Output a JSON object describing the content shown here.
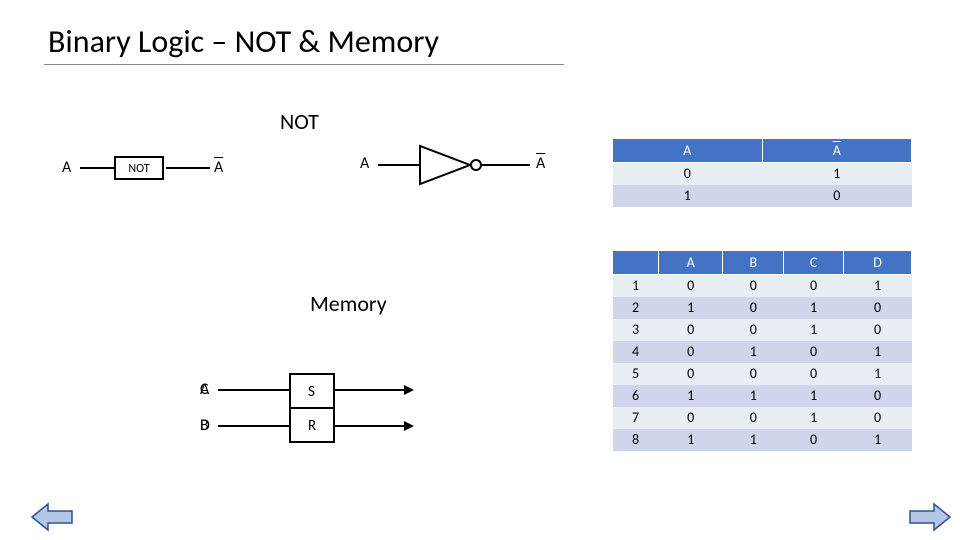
{
  "title": "Binary Logic – NOT & Memory",
  "sections": {
    "not_label": "NOT",
    "memory_label": "Memory"
  },
  "not_block": {
    "input_label": "A",
    "box_text": "NOT",
    "output_label": "A"
  },
  "not_gate": {
    "input_label": "A",
    "output_label": "A"
  },
  "sr_block": {
    "a": "A",
    "b": "B",
    "s": "S",
    "r": "R",
    "c": "C",
    "d": "D"
  },
  "not_table": {
    "type": "table",
    "header_bg": "#4472c4",
    "header_color": "#ffffff",
    "row_odd_bg": "#e9edf4",
    "row_even_bg": "#cfd5ea",
    "columns": [
      "A",
      "A"
    ],
    "column_overline": [
      false,
      true
    ],
    "rows": [
      [
        "0",
        "1"
      ],
      [
        "1",
        "0"
      ]
    ]
  },
  "mem_table": {
    "type": "table",
    "header_bg": "#4472c4",
    "header_color": "#ffffff",
    "row_odd_bg": "#e9edf4",
    "row_even_bg": "#cfd5ea",
    "columns": [
      "",
      "A",
      "B",
      "C",
      "D"
    ],
    "rows": [
      [
        "1",
        "0",
        "0",
        "0",
        "1"
      ],
      [
        "2",
        "1",
        "0",
        "1",
        "0"
      ],
      [
        "3",
        "0",
        "0",
        "1",
        "0"
      ],
      [
        "4",
        "0",
        "1",
        "0",
        "1"
      ],
      [
        "5",
        "0",
        "0",
        "0",
        "1"
      ],
      [
        "6",
        "1",
        "1",
        "1",
        "0"
      ],
      [
        "7",
        "0",
        "0",
        "1",
        "0"
      ],
      [
        "8",
        "1",
        "1",
        "0",
        "1"
      ]
    ]
  },
  "nav": {
    "arrow_fill": "#b4c7e7",
    "arrow_stroke": "#2f528f"
  }
}
